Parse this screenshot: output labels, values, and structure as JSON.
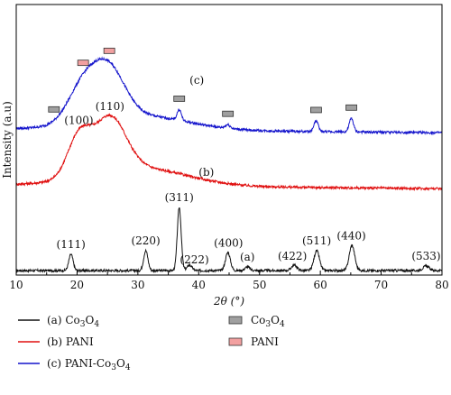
{
  "chart_data": {
    "type": "line",
    "title": "",
    "xlabel": "2θ (°)",
    "ylabel": "Intensity (a.u)",
    "xlim": [
      10,
      80
    ],
    "x_ticks": [
      "10",
      "20",
      "30",
      "40",
      "50",
      "60",
      "70",
      "80"
    ],
    "grid": false,
    "legend_position": "bottom",
    "series": [
      {
        "key": "a",
        "name": "(a) Co3O4",
        "color": "#111111",
        "curve_label": "",
        "baseline": 5,
        "noise": 0.9,
        "peaks": [
          {
            "x": 19.0,
            "h": 18,
            "w": 0.35
          },
          {
            "x": 31.3,
            "h": 22,
            "w": 0.35
          },
          {
            "x": 36.8,
            "h": 70,
            "w": 0.32
          },
          {
            "x": 38.5,
            "h": 6,
            "w": 0.4
          },
          {
            "x": 44.8,
            "h": 20,
            "w": 0.4
          },
          {
            "x": 48.0,
            "h": 4,
            "w": 0.4
          },
          {
            "x": 55.7,
            "h": 6,
            "w": 0.45
          },
          {
            "x": 59.4,
            "h": 22,
            "w": 0.45
          },
          {
            "x": 65.2,
            "h": 28,
            "w": 0.45
          },
          {
            "x": 77.4,
            "h": 5,
            "w": 0.5
          }
        ]
      },
      {
        "key": "b",
        "name": "(b) PANI",
        "color": "#e01010",
        "curve_label": "(b)",
        "baseline": 100,
        "noise": 0.9,
        "broad": [
          {
            "x": 20.3,
            "h": 44,
            "w": 1.9
          },
          {
            "x": 25.4,
            "h": 60,
            "w": 2.6
          },
          {
            "x": 30.0,
            "h": 20,
            "w": 8.0
          }
        ],
        "peaks": []
      },
      {
        "key": "c",
        "name": "(c) PANI-Co3O4",
        "color": "#1414cc",
        "curve_label": "(c)",
        "baseline": 162,
        "noise": 0.9,
        "broad": [
          {
            "x": 21.0,
            "h": 40,
            "w": 2.5
          },
          {
            "x": 25.3,
            "h": 53,
            "w": 2.6
          },
          {
            "x": 30.0,
            "h": 16,
            "w": 8.0
          }
        ],
        "peaks": [
          {
            "x": 36.8,
            "h": 12,
            "w": 0.35
          },
          {
            "x": 44.8,
            "h": 4,
            "w": 0.4
          },
          {
            "x": 59.3,
            "h": 12,
            "w": 0.35
          },
          {
            "x": 65.1,
            "h": 15,
            "w": 0.35
          }
        ]
      }
    ],
    "peak_labels": [
      {
        "text": "(111)",
        "x": 19.0
      },
      {
        "text": "(220)",
        "x": 31.3
      },
      {
        "text": "(311)",
        "x": 36.8
      },
      {
        "text": "(222)",
        "x": 39.3
      },
      {
        "text": "(400)",
        "x": 44.9
      },
      {
        "text": "(a)",
        "x": 48.0
      },
      {
        "text": "(422)",
        "x": 55.4
      },
      {
        "text": "(511)",
        "x": 59.4
      },
      {
        "text": "(440)",
        "x": 65.1
      },
      {
        "text": "(533)",
        "x": 77.4
      }
    ],
    "pani_labels": [
      {
        "text": "(100)",
        "x": 20.3
      },
      {
        "text": "(110)",
        "x": 25.4
      }
    ],
    "markers": [
      {
        "type": "Co3O4",
        "x": 16.2
      },
      {
        "type": "Co3O4",
        "x": 36.8
      },
      {
        "type": "Co3O4",
        "x": 44.8
      },
      {
        "type": "Co3O4",
        "x": 59.3
      },
      {
        "type": "Co3O4",
        "x": 65.1
      },
      {
        "type": "PANI",
        "x": 21.0
      },
      {
        "type": "PANI",
        "x": 25.3
      }
    ],
    "marker_colors": {
      "Co3O4": "#a0a0a0",
      "PANI": "#f2a0a0"
    },
    "legend": {
      "series": [
        {
          "prefix": "(a) Co",
          "sub1": "3",
          "mid": "O",
          "sub2": "4",
          "color": "#111111"
        },
        {
          "prefix": "(b) PANI",
          "sub1": "",
          "mid": "",
          "sub2": "",
          "color": "#e01010"
        },
        {
          "prefix": "(c) PANI-Co",
          "sub1": "3",
          "mid": "O",
          "sub2": "4",
          "color": "#1414cc"
        }
      ],
      "markers": [
        {
          "prefix": "Co",
          "sub1": "3",
          "mid": "O",
          "sub2": "4",
          "type": "Co3O4"
        },
        {
          "prefix": "PANI",
          "sub1": "",
          "mid": "",
          "sub2": "",
          "type": "PANI"
        }
      ]
    }
  }
}
